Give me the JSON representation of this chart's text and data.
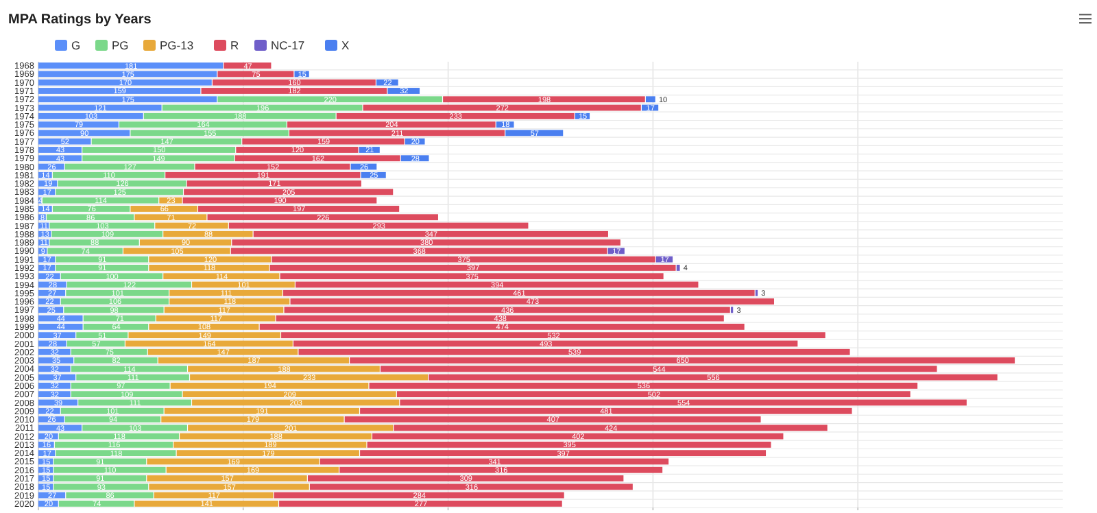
{
  "chart_data": {
    "type": "bar",
    "orientation": "horizontal",
    "stacked": true,
    "title": "MPA Ratings by Years",
    "categories": [
      "1968",
      "1969",
      "1970",
      "1971",
      "1972",
      "1973",
      "1974",
      "1975",
      "1976",
      "1977",
      "1978",
      "1979",
      "1980",
      "1981",
      "1982",
      "1983",
      "1984",
      "1985",
      "1986",
      "1987",
      "1988",
      "1989",
      "1990",
      "1991",
      "1992",
      "1993",
      "1994",
      "1995",
      "1996",
      "1997",
      "1998",
      "1999",
      "2000",
      "2001",
      "2002",
      "2003",
      "2004",
      "2005",
      "2006",
      "2007",
      "2008",
      "2009",
      "2010",
      "2011",
      "2012",
      "2013",
      "2014",
      "2015",
      "2016",
      "2017",
      "2018",
      "2019",
      "2020"
    ],
    "series": [
      {
        "name": "G",
        "color": "#5b8ff9",
        "values": [
          181,
          175,
          170,
          159,
          175,
          121,
          103,
          79,
          90,
          52,
          43,
          43,
          26,
          14,
          19,
          17,
          4,
          14,
          8,
          11,
          13,
          11,
          9,
          17,
          17,
          22,
          28,
          27,
          22,
          25,
          44,
          44,
          37,
          28,
          32,
          35,
          32,
          37,
          32,
          32,
          39,
          22,
          26,
          43,
          20,
          16,
          17,
          15,
          15,
          15,
          15,
          27,
          20
        ]
      },
      {
        "name": "PG",
        "color": "#7bd88a",
        "values": [
          null,
          null,
          null,
          null,
          220,
          196,
          188,
          164,
          155,
          147,
          150,
          149,
          127,
          110,
          126,
          125,
          114,
          76,
          86,
          103,
          109,
          88,
          74,
          91,
          91,
          100,
          122,
          101,
          106,
          98,
          71,
          64,
          51,
          57,
          75,
          82,
          114,
          111,
          97,
          109,
          111,
          101,
          94,
          103,
          118,
          116,
          118,
          91,
          110,
          91,
          93,
          86,
          74
        ]
      },
      {
        "name": "PG-13",
        "color": "#e8a93a",
        "values": [
          null,
          null,
          null,
          null,
          null,
          null,
          null,
          null,
          null,
          null,
          null,
          null,
          null,
          null,
          null,
          null,
          23,
          66,
          71,
          72,
          88,
          90,
          105,
          120,
          118,
          114,
          101,
          111,
          118,
          117,
          117,
          108,
          149,
          164,
          147,
          187,
          188,
          233,
          194,
          209,
          203,
          191,
          179,
          201,
          188,
          189,
          179,
          169,
          169,
          157,
          157,
          117,
          141
        ]
      },
      {
        "name": "R",
        "color": "#dd4b5e",
        "values": [
          47,
          75,
          160,
          182,
          198,
          272,
          233,
          204,
          211,
          159,
          120,
          162,
          152,
          191,
          171,
          205,
          190,
          197,
          226,
          293,
          347,
          380,
          368,
          375,
          397,
          375,
          394,
          461,
          473,
          436,
          438,
          474,
          532,
          493,
          539,
          650,
          544,
          556,
          536,
          502,
          554,
          481,
          407,
          424,
          402,
          395,
          397,
          341,
          316,
          309,
          316,
          284,
          277
        ]
      },
      {
        "name": "NC-17",
        "color": "#6f5ec9",
        "values": [
          null,
          null,
          null,
          null,
          null,
          null,
          null,
          null,
          null,
          null,
          null,
          null,
          null,
          null,
          null,
          null,
          null,
          null,
          null,
          null,
          null,
          null,
          17,
          17,
          4,
          null,
          null,
          3,
          null,
          3,
          null,
          null,
          null,
          null,
          null,
          null,
          null,
          null,
          null,
          null,
          null,
          null,
          null,
          null,
          null,
          null,
          null,
          null,
          null,
          null,
          null,
          null,
          null
        ]
      },
      {
        "name": "X",
        "color": "#4a7ff0",
        "values": [
          null,
          15,
          22,
          32,
          10,
          17,
          15,
          18,
          57,
          20,
          21,
          28,
          26,
          25,
          null,
          null,
          null,
          null,
          null,
          null,
          null,
          null,
          null,
          null,
          null,
          null,
          null,
          null,
          null,
          null,
          null,
          null,
          null,
          null,
          null,
          null,
          null,
          null,
          null,
          null,
          null,
          null,
          null,
          null,
          null,
          null,
          null,
          null,
          null,
          null,
          null,
          null,
          null
        ]
      }
    ],
    "xlim": [
      0,
      1000
    ],
    "xticks": [
      {
        "value": 0,
        "label": null
      },
      {
        "value": 200,
        "label": null
      },
      {
        "value": 400,
        "label": null
      },
      {
        "value": 600,
        "label": null
      },
      {
        "value": 800,
        "label": null
      }
    ],
    "tick_labels": "y",
    "grid": true,
    "legend": "top left",
    "data_labels": true
  }
}
